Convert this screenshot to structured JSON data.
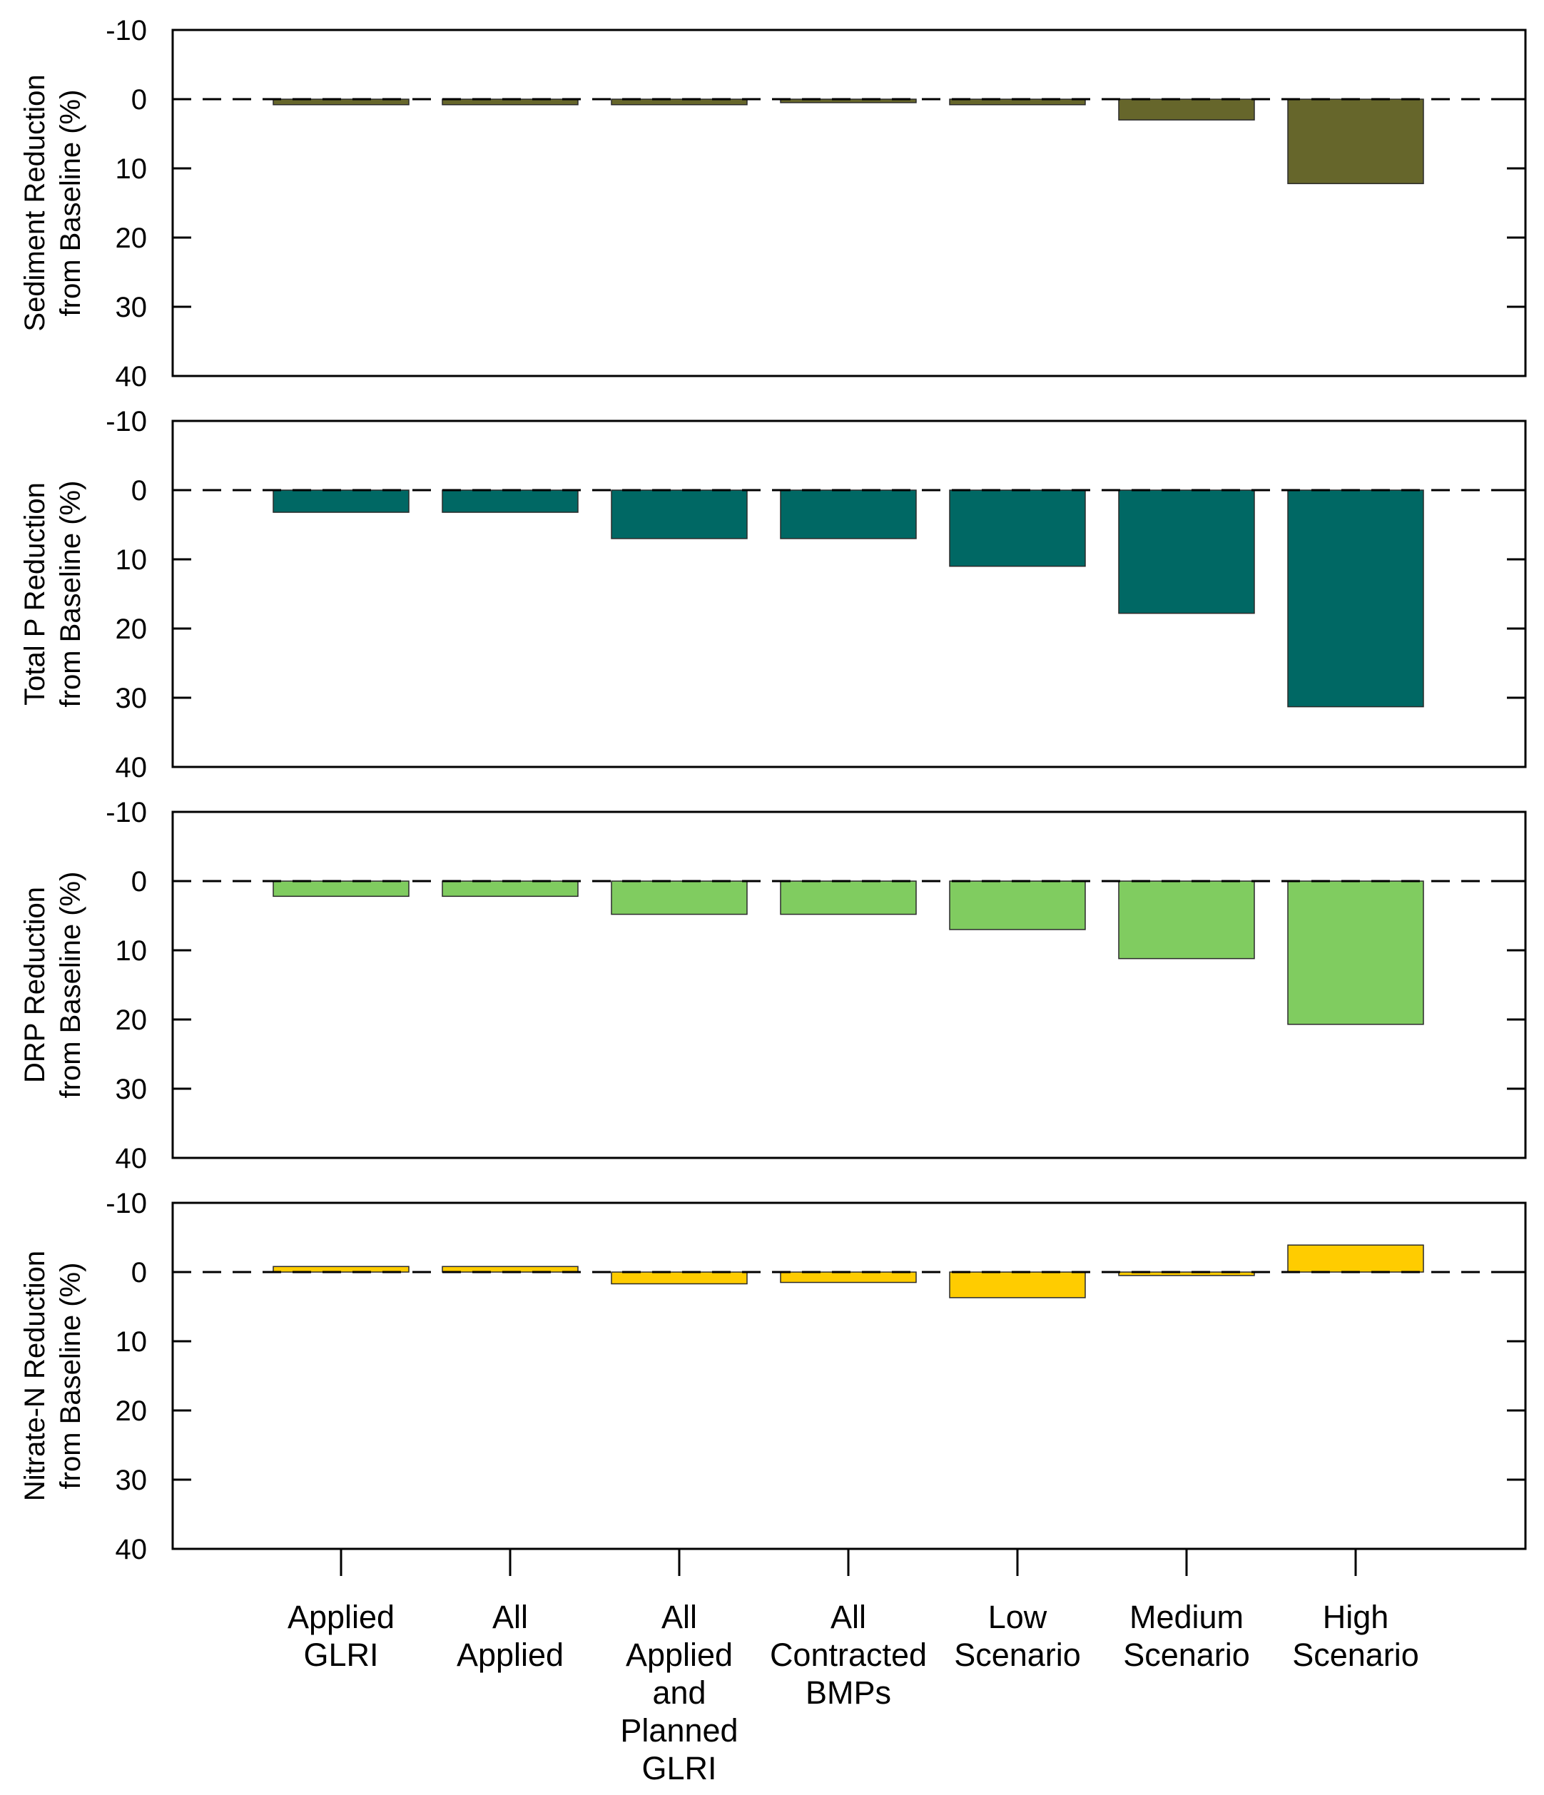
{
  "chart_data": {
    "type": "bar",
    "orientation": "vertical",
    "y_axis_inverted": true,
    "categories": [
      [
        "Applied",
        "GLRI"
      ],
      [
        "All",
        "Applied"
      ],
      [
        "All",
        "Applied",
        "and",
        "Planned",
        "GLRI"
      ],
      [
        "All",
        "Contracted",
        "BMPs"
      ],
      [
        "Low",
        "Scenario"
      ],
      [
        "Medium",
        "Scenario"
      ],
      [
        "High",
        "Scenario"
      ]
    ],
    "ylim": [
      -10,
      40
    ],
    "yticks": [
      "-10",
      "0",
      "10",
      "20",
      "30",
      "40"
    ],
    "yticks_values": [
      -10,
      0,
      10,
      20,
      30,
      40
    ],
    "baseline": 0,
    "baseline_style": "dashed",
    "grid": false,
    "panels": [
      {
        "name": "sediment",
        "ylabel_lines": [
          "Sediment Reduction",
          "from Baseline (%)"
        ],
        "color": "#66662b",
        "values": [
          0.8,
          0.8,
          0.8,
          0.5,
          0.8,
          3.0,
          12.2
        ]
      },
      {
        "name": "total-p",
        "ylabel_lines": [
          "Total P Reduction",
          "from Baseline (%)"
        ],
        "color": "#006864",
        "values": [
          3.2,
          3.2,
          7.0,
          7.0,
          11.0,
          17.8,
          31.3
        ]
      },
      {
        "name": "drp",
        "ylabel_lines": [
          "DRP Reduction",
          "from Baseline (%)"
        ],
        "color": "#80cc60",
        "values": [
          2.2,
          2.2,
          4.8,
          4.8,
          7.0,
          11.2,
          20.7
        ]
      },
      {
        "name": "nitrate-n",
        "ylabel_lines": [
          "Nitrate-N Reduction",
          "from Baseline (%)"
        ],
        "color": "#ffcc00",
        "values": [
          -0.8,
          -0.8,
          1.7,
          1.5,
          3.7,
          0.5,
          -3.9
        ]
      }
    ]
  }
}
